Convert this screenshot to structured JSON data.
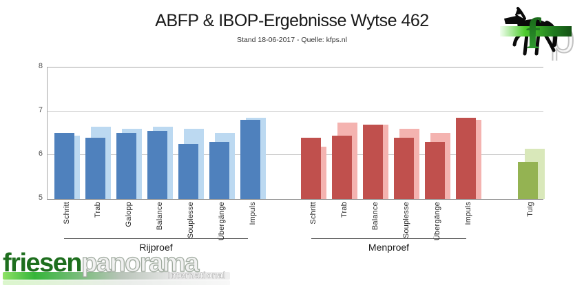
{
  "header": {
    "title": "ABFP & IBOP-Ergebnisse Wytse 462",
    "subtitle": "Stand 18-06-2017 - Quelle: kfps.nl"
  },
  "fp_logo": {
    "f": "f",
    "p": "p"
  },
  "footer_logo": {
    "part1": "friesen",
    "part2": "panorama",
    "subtitle": "International"
  },
  "chart_data": {
    "type": "bar",
    "title": "ABFP & IBOP-Ergebnisse Wytse 462",
    "subtitle": "Stand 18-06-2017 - Quelle: kfps.nl",
    "ylim": [
      5,
      8
    ],
    "yticks": [
      5,
      6,
      7,
      8
    ],
    "grid": "horizontal",
    "legend": "none",
    "groups": [
      {
        "name": "Rijproef",
        "front_color": "#4f81bd",
        "back_color": "#bcd9f1",
        "categories": [
          "Schritt",
          "Trab",
          "Galopp",
          "Balance",
          "Souplesse",
          "Übergänge",
          "Impuls"
        ],
        "series": [
          {
            "name": "back",
            "values": [
              6.45,
              6.65,
              6.6,
              6.65,
              6.6,
              6.5,
              6.85
            ]
          },
          {
            "name": "front",
            "values": [
              6.5,
              6.4,
              6.5,
              6.55,
              6.25,
              6.3,
              6.8
            ]
          }
        ]
      },
      {
        "name": "Menproef",
        "front_color": "#c0504d",
        "back_color": "#f4b3b0",
        "categories": [
          "Schritt",
          "Trab",
          "Balance",
          "Souplesse",
          "Übergänge",
          "Impuls"
        ],
        "series": [
          {
            "name": "back",
            "values": [
              6.2,
              6.75,
              6.7,
              6.6,
              6.5,
              6.8
            ]
          },
          {
            "name": "front",
            "values": [
              6.4,
              6.45,
              6.7,
              6.4,
              6.3,
              6.85
            ]
          }
        ]
      },
      {
        "name": "Tuig",
        "front_color": "#94b352",
        "back_color": "#d9e8ba",
        "categories": [
          "Tuig"
        ],
        "series": [
          {
            "name": "back",
            "values": [
              6.15
            ]
          },
          {
            "name": "front",
            "values": [
              5.85
            ]
          }
        ]
      }
    ]
  }
}
